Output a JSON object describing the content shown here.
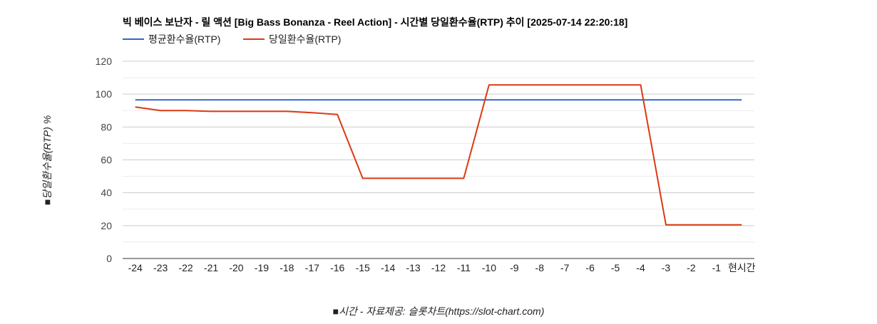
{
  "chart_data": {
    "type": "line",
    "title": "빅 베이스 보난자 - 릴 액션 [Big Bass Bonanza - Reel Action] - 시간별 당일환수율(RTP) 추이 [2025-07-14 22:20:18]",
    "xlabel": "■시간 - 자료제공: 슬롯차트(https://slot-chart.com)",
    "ylabel": "■당일환수율(RTP) %",
    "ylim": [
      0,
      120
    ],
    "yticks": [
      "0",
      "20",
      "40",
      "60",
      "80",
      "100",
      "120"
    ],
    "categories": [
      "-24",
      "-23",
      "-22",
      "-21",
      "-20",
      "-19",
      "-18",
      "-17",
      "-16",
      "-15",
      "-14",
      "-13",
      "-12",
      "-11",
      "-10",
      "-9",
      "-8",
      "-7",
      "-6",
      "-5",
      "-4",
      "-3",
      "-2",
      "-1",
      "현시간"
    ],
    "legend_position": "top-left",
    "series": [
      {
        "name": "평균환수율(RTP)",
        "color": "#3366cc",
        "values": [
          96.5,
          96.5,
          96.5,
          96.5,
          96.5,
          96.5,
          96.5,
          96.5,
          96.5,
          96.5,
          96.5,
          96.5,
          96.5,
          96.5,
          96.5,
          96.5,
          96.5,
          96.5,
          96.5,
          96.5,
          96.5,
          96.5,
          96.5,
          96.5,
          96.5
        ]
      },
      {
        "name": "당일환수율(RTP)",
        "color": "#dc3912",
        "values": [
          92.2,
          90,
          90,
          89.5,
          89.5,
          89.5,
          89.5,
          88.7,
          87.6,
          48.8,
          48.8,
          48.8,
          48.8,
          48.8,
          105.6,
          105.6,
          105.6,
          105.6,
          105.6,
          105.6,
          105.6,
          20.5,
          20.5,
          20.5,
          20.5
        ]
      }
    ]
  }
}
